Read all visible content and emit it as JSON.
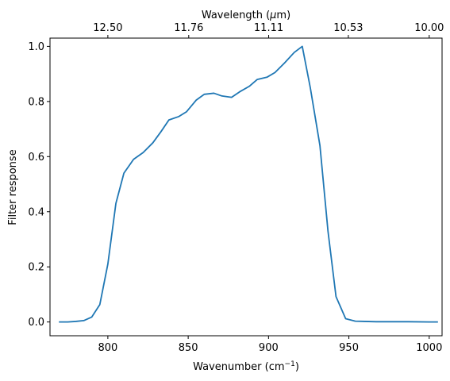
{
  "chart_data": {
    "type": "line",
    "xlabel": "Wavenumber (cm",
    "xlabel_superscript": "−1",
    "xlabel_suffix": ")",
    "ylabel": "Filter response",
    "top_xlabel": "Wavelength (",
    "top_xlabel_mu": "μ",
    "top_xlabel_suffix": "m)",
    "xlim": [
      764,
      1008
    ],
    "ylim": [
      -0.05,
      1.03
    ],
    "xticks": [
      800,
      850,
      900,
      950,
      1000
    ],
    "yticks": [
      0.0,
      0.2,
      0.4,
      0.6,
      0.8,
      1.0
    ],
    "xtick_labels": [
      "800",
      "850",
      "900",
      "950",
      "1000"
    ],
    "ytick_labels": [
      "0.0",
      "0.2",
      "0.4",
      "0.6",
      "0.8",
      "1.0"
    ],
    "top_xticks_wavenumber": [
      800,
      850.34,
      900.09,
      949.67,
      1000
    ],
    "top_xtick_labels": [
      "12.50",
      "11.76",
      "11.11",
      "10.53",
      "10.00"
    ],
    "grid": false,
    "line_color": "#1f77b4",
    "series": [
      {
        "x": [
          770,
          775,
          780,
          785,
          790,
          795,
          800,
          805,
          810,
          816,
          822,
          828,
          833,
          838,
          844,
          849,
          855,
          860,
          866,
          871,
          877,
          882,
          888,
          893,
          899,
          904,
          910,
          916,
          921,
          926,
          932,
          937,
          942,
          948,
          954,
          960,
          967,
          974,
          987,
          1000,
          1005
        ],
        "y": [
          0.0,
          0.0,
          0.002,
          0.005,
          0.018,
          0.063,
          0.21,
          0.43,
          0.54,
          0.59,
          0.615,
          0.65,
          0.69,
          0.733,
          0.745,
          0.763,
          0.805,
          0.826,
          0.83,
          0.82,
          0.815,
          0.835,
          0.855,
          0.88,
          0.888,
          0.905,
          0.94,
          0.978,
          1.0,
          0.85,
          0.64,
          0.33,
          0.092,
          0.012,
          0.003,
          0.002,
          0.001,
          0.001,
          0.001,
          0.0,
          0.0
        ]
      }
    ]
  }
}
